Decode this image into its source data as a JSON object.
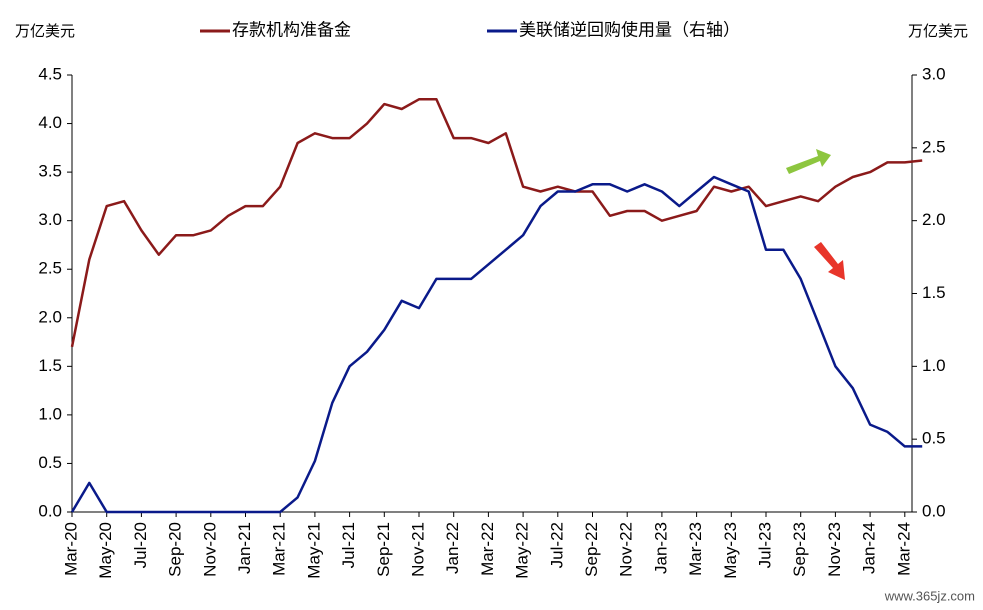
{
  "chart_data": {
    "type": "line",
    "left_unit": "万亿美元",
    "right_unit": "万亿美元",
    "watermark": "www.365jz.com",
    "categories": [
      "Mar-20",
      null,
      "May-20",
      null,
      "Jul-20",
      null,
      "Sep-20",
      null,
      "Nov-20",
      null,
      "Jan-21",
      null,
      "Mar-21",
      null,
      "May-21",
      null,
      "Jul-21",
      null,
      "Sep-21",
      null,
      "Nov-21",
      null,
      "Jan-22",
      null,
      "Mar-22",
      null,
      "May-22",
      null,
      "Jul-22",
      null,
      "Sep-22",
      null,
      "Nov-22",
      null,
      "Jan-23",
      null,
      "Mar-23",
      null,
      "May-23",
      null,
      "Jul-23",
      null,
      "Sep-23",
      null,
      "Nov-23",
      null,
      "Jan-24",
      null,
      "Mar-24",
      null
    ],
    "series": [
      {
        "name": "存款机构准备金",
        "color": "#8b1a1a",
        "axis": "y",
        "values": [
          1.7,
          2.6,
          3.15,
          3.2,
          2.9,
          2.65,
          2.85,
          2.85,
          2.9,
          3.05,
          3.15,
          3.15,
          3.35,
          3.8,
          3.9,
          3.85,
          3.85,
          4.0,
          4.2,
          4.15,
          4.25,
          4.25,
          3.85,
          3.85,
          3.8,
          3.9,
          3.35,
          3.3,
          3.35,
          3.3,
          3.3,
          3.05,
          3.1,
          3.1,
          3.0,
          3.05,
          3.1,
          3.35,
          3.3,
          3.35,
          3.15,
          3.2,
          3.25,
          3.2,
          3.35,
          3.45,
          3.5,
          3.6,
          3.6,
          3.62
        ]
      },
      {
        "name": "美联储逆回购使用量（右轴）",
        "color": "#0a1a8a",
        "axis": "y2",
        "values": [
          0,
          0.2,
          0,
          0,
          0,
          0,
          0,
          0,
          0,
          0,
          0,
          0,
          0,
          0.1,
          0.35,
          0.75,
          1.0,
          1.1,
          1.25,
          1.45,
          1.4,
          1.6,
          1.6,
          1.6,
          1.7,
          1.8,
          1.9,
          2.1,
          2.2,
          2.2,
          2.25,
          2.25,
          2.2,
          2.25,
          2.2,
          2.1,
          2.2,
          2.3,
          2.25,
          2.2,
          1.8,
          1.8,
          1.6,
          1.3,
          1.0,
          0.85,
          0.6,
          0.55,
          0.45,
          0.45
        ]
      }
    ],
    "ylim": [
      0,
      4.5
    ],
    "yticks": [
      {
        "value": 0,
        "label": "0.0"
      },
      0.5,
      {
        "value": 1,
        "label": "1.0"
      },
      1.5,
      {
        "value": 2,
        "label": "2.0"
      },
      2.5,
      {
        "value": 3,
        "label": "3.0"
      },
      3.5,
      {
        "value": 4,
        "label": "4.0"
      },
      4.5
    ],
    "y2lim": [
      0,
      3
    ],
    "y2ticks": [
      {
        "value": 0,
        "label": "0.0"
      },
      0.5,
      {
        "value": 1,
        "label": "1.0"
      },
      1.5,
      {
        "value": 2,
        "label": "2.0"
      },
      2.5,
      {
        "value": 3,
        "label": "3.0"
      }
    ],
    "grid": false
  }
}
